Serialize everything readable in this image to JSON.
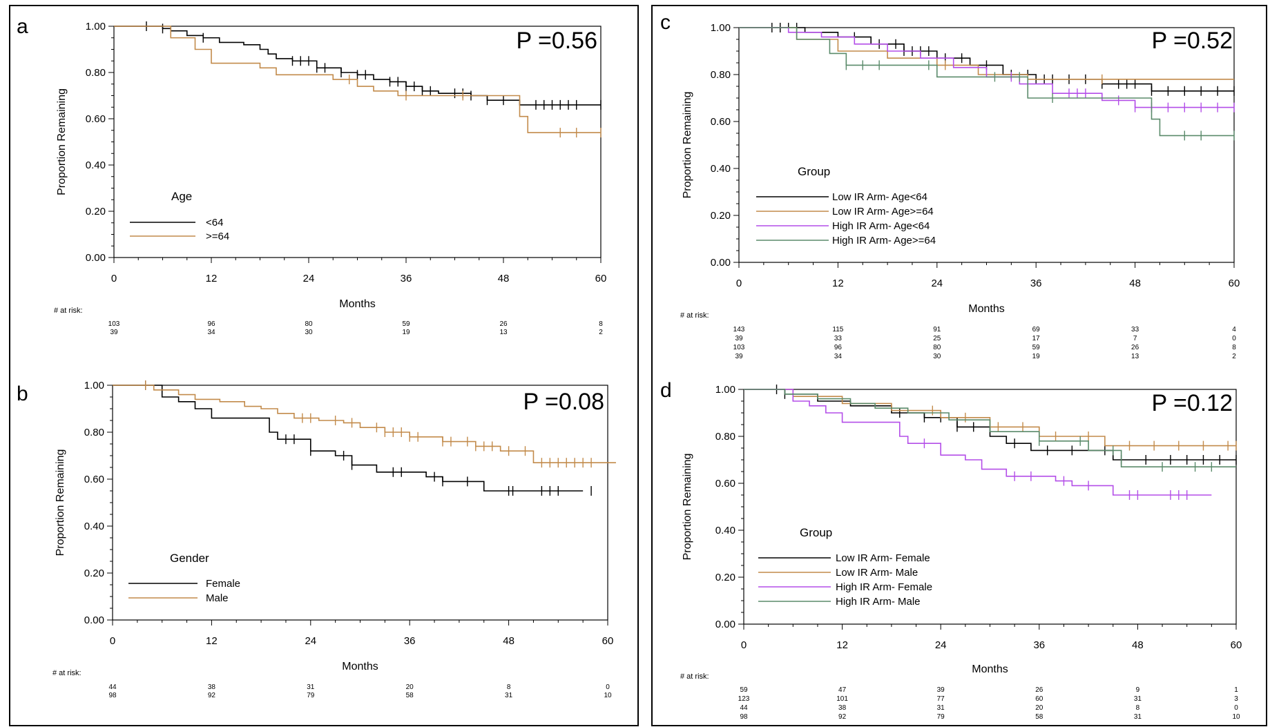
{
  "chart_data": [
    {
      "panel": "a",
      "type": "line",
      "p_value": "P =0.56",
      "xlabel": "Months",
      "ylabel": "Proportion Remaining",
      "xlim": [
        0,
        60
      ],
      "ylim": [
        0,
        1
      ],
      "xticks": [
        "0",
        "12",
        "24",
        "36",
        "48",
        "60"
      ],
      "yticks": [
        "0.00",
        "0.20",
        "0.40",
        "0.60",
        "0.80",
        "1.00"
      ],
      "legend_title": "Age",
      "risk_label": "# at risk:",
      "series": [
        {
          "name": "<64",
          "color": "#000000",
          "x": [
            0,
            6,
            7,
            9,
            11,
            13,
            16,
            18,
            19,
            20,
            22,
            25,
            28,
            30,
            32,
            34,
            36,
            38,
            40,
            44,
            46,
            50,
            60
          ],
          "y": [
            1.0,
            0.99,
            0.98,
            0.96,
            0.95,
            0.93,
            0.92,
            0.9,
            0.88,
            0.86,
            0.85,
            0.82,
            0.8,
            0.79,
            0.77,
            0.76,
            0.74,
            0.72,
            0.71,
            0.7,
            0.68,
            0.66,
            0.66
          ],
          "censors": [
            4,
            6,
            11,
            22,
            23,
            24,
            25,
            26,
            28,
            30,
            31,
            34,
            35,
            36,
            37,
            38,
            39,
            42,
            43,
            44,
            46,
            48,
            52,
            53,
            54,
            55,
            56,
            57,
            60
          ],
          "at_risk": [
            "103",
            "96",
            "80",
            "59",
            "26",
            "8"
          ]
        },
        {
          "name": ">=64",
          "color": "#c28a4a",
          "x": [
            0,
            7,
            10,
            12,
            14,
            18,
            20,
            23,
            27,
            30,
            32,
            35,
            50,
            51,
            60
          ],
          "y": [
            1.0,
            0.95,
            0.9,
            0.84,
            0.84,
            0.82,
            0.79,
            0.79,
            0.77,
            0.74,
            0.72,
            0.7,
            0.61,
            0.54,
            0.54
          ],
          "censors": [
            29,
            36,
            43,
            55,
            57,
            60
          ],
          "at_risk": [
            "39",
            "34",
            "30",
            "19",
            "13",
            "2"
          ]
        }
      ],
      "risk_times": [
        0,
        12,
        24,
        36,
        48,
        60
      ]
    },
    {
      "panel": "b",
      "type": "line",
      "p_value": "P =0.08",
      "xlabel": "Months",
      "ylabel": "Proportion Remaining",
      "xlim": [
        0,
        60
      ],
      "ylim": [
        0,
        1
      ],
      "xticks": [
        "0",
        "12",
        "24",
        "36",
        "48",
        "60"
      ],
      "yticks": [
        "0.00",
        "0.20",
        "0.40",
        "0.60",
        "0.80",
        "1.00"
      ],
      "legend_title": "Gender",
      "risk_label": "# at risk:",
      "series": [
        {
          "name": "Female",
          "color": "#000000",
          "x": [
            0,
            6,
            8,
            10,
            12,
            19,
            20,
            24,
            27,
            29,
            32,
            38,
            40,
            45,
            57
          ],
          "y": [
            1.0,
            0.95,
            0.93,
            0.9,
            0.86,
            0.8,
            0.77,
            0.72,
            0.7,
            0.66,
            0.63,
            0.61,
            0.59,
            0.55,
            0.55
          ],
          "censors": [
            4,
            21,
            22,
            24,
            28,
            29,
            34,
            35,
            39,
            40,
            43,
            48,
            48.5,
            52,
            53,
            54,
            58
          ],
          "at_risk": [
            "44",
            "38",
            "31",
            "20",
            "8",
            "0"
          ]
        },
        {
          "name": "Male",
          "color": "#c28a4a",
          "x": [
            0,
            5,
            8,
            10,
            13,
            16,
            18,
            20,
            22,
            25,
            28,
            30,
            33,
            36,
            40,
            44,
            47,
            51,
            61
          ],
          "y": [
            1.0,
            0.98,
            0.96,
            0.94,
            0.93,
            0.91,
            0.9,
            0.88,
            0.86,
            0.85,
            0.84,
            0.82,
            0.8,
            0.78,
            0.76,
            0.74,
            0.72,
            0.67,
            0.67
          ],
          "censors": [
            4,
            23,
            24,
            27,
            29,
            32,
            33,
            34,
            35,
            36,
            37,
            40,
            41,
            43,
            44,
            45,
            46,
            48,
            50,
            52,
            53,
            54,
            55,
            56,
            57,
            58
          ],
          "at_risk": [
            "98",
            "92",
            "79",
            "58",
            "31",
            "10"
          ]
        }
      ],
      "risk_times": [
        0,
        12,
        24,
        36,
        48,
        60
      ]
    },
    {
      "panel": "c",
      "type": "line",
      "p_value": "P =0.52",
      "xlabel": "Months",
      "ylabel": "Proportion Remaining",
      "xlim": [
        0,
        60
      ],
      "ylim": [
        0,
        1
      ],
      "xticks": [
        "0",
        "12",
        "24",
        "36",
        "48",
        "60"
      ],
      "yticks": [
        "0.00",
        "0.20",
        "0.40",
        "0.60",
        "0.80",
        "1.00"
      ],
      "legend_title": "Group",
      "risk_label": "# at risk:",
      "series": [
        {
          "name": "Low IR Arm- Age<64",
          "color": "#000000",
          "x": [
            0,
            8,
            12,
            16,
            20,
            24,
            28,
            32,
            36,
            44,
            50,
            60
          ],
          "y": [
            1.0,
            0.98,
            0.96,
            0.93,
            0.9,
            0.87,
            0.84,
            0.8,
            0.78,
            0.76,
            0.73,
            0.73
          ],
          "censors": [
            4,
            5,
            6,
            7,
            14,
            17,
            19,
            20,
            21,
            22,
            23,
            25,
            27,
            30,
            33,
            35,
            36,
            37,
            38,
            40,
            42,
            44,
            46,
            47,
            48,
            50,
            52,
            54,
            56,
            58,
            60
          ],
          "at_risk": [
            "143",
            "115",
            "91",
            "69",
            "33",
            "4"
          ]
        },
        {
          "name": "Low IR Arm- Age>=64",
          "color": "#c28a4a",
          "x": [
            0,
            7,
            12,
            18,
            24,
            29,
            35,
            60
          ],
          "y": [
            1.0,
            0.95,
            0.9,
            0.87,
            0.84,
            0.8,
            0.78,
            0.78
          ],
          "censors": [
            25,
            44
          ],
          "at_risk": [
            "39",
            "33",
            "25",
            "17",
            "7",
            "0"
          ]
        },
        {
          "name": "High IR Arm- Age<64",
          "color": "#b34de8",
          "x": [
            0,
            6,
            10,
            14,
            18,
            22,
            26,
            30,
            34,
            38,
            44,
            48,
            60
          ],
          "y": [
            1.0,
            0.98,
            0.96,
            0.93,
            0.9,
            0.87,
            0.83,
            0.79,
            0.76,
            0.72,
            0.69,
            0.66,
            0.66
          ],
          "censors": [
            33,
            40,
            41,
            42,
            46,
            48,
            50,
            52,
            54,
            56,
            58,
            60
          ],
          "at_risk": [
            "103",
            "96",
            "80",
            "59",
            "26",
            "8"
          ]
        },
        {
          "name": "High IR Arm- Age>=64",
          "color": "#5a8a6a",
          "x": [
            0,
            7,
            11,
            13,
            18,
            24,
            29,
            35,
            50,
            51,
            60
          ],
          "y": [
            1.0,
            0.95,
            0.89,
            0.84,
            0.84,
            0.79,
            0.79,
            0.7,
            0.61,
            0.54,
            0.54
          ],
          "censors": [
            13,
            15,
            17,
            23,
            31,
            34,
            38,
            54,
            56,
            60
          ],
          "at_risk": [
            "39",
            "34",
            "30",
            "19",
            "13",
            "2"
          ]
        }
      ],
      "risk_times": [
        0,
        12,
        24,
        36,
        48,
        60
      ]
    },
    {
      "panel": "d",
      "type": "line",
      "p_value": "P =0.12",
      "xlabel": "Months",
      "ylabel": "Proportion Remaining",
      "xlim": [
        0,
        60
      ],
      "ylim": [
        0,
        1
      ],
      "xticks": [
        "0",
        "12",
        "24",
        "36",
        "48",
        "60"
      ],
      "yticks": [
        "0.00",
        "0.20",
        "0.40",
        "0.60",
        "0.80",
        "1.00"
      ],
      "legend_title": "Group",
      "risk_label": "# at risk:",
      "series": [
        {
          "name": "Low IR Arm- Female",
          "color": "#000000",
          "x": [
            0,
            5,
            9,
            13,
            18,
            22,
            26,
            30,
            32,
            35,
            45,
            60
          ],
          "y": [
            1.0,
            0.98,
            0.95,
            0.93,
            0.9,
            0.88,
            0.84,
            0.8,
            0.77,
            0.74,
            0.7,
            0.7
          ],
          "censors": [
            4,
            5,
            19,
            22,
            24,
            26,
            28,
            33,
            37,
            40,
            44,
            46,
            49,
            52,
            54,
            56,
            58,
            60
          ],
          "at_risk": [
            "59",
            "47",
            "39",
            "26",
            "9",
            "1"
          ]
        },
        {
          "name": "Low IR Arm- Male",
          "color": "#c28a4a",
          "x": [
            0,
            6,
            12,
            18,
            24,
            30,
            36,
            44,
            60
          ],
          "y": [
            1.0,
            0.97,
            0.94,
            0.91,
            0.88,
            0.84,
            0.8,
            0.76,
            0.76
          ],
          "censors": [
            23,
            27,
            31,
            34,
            38,
            42,
            47,
            50,
            53,
            56,
            59,
            60
          ],
          "at_risk": [
            "123",
            "101",
            "77",
            "60",
            "31",
            "3"
          ]
        },
        {
          "name": "High IR Arm- Female",
          "color": "#b34de8",
          "x": [
            0,
            6,
            8,
            10,
            12,
            19,
            20,
            24,
            27,
            29,
            32,
            38,
            40,
            45,
            57
          ],
          "y": [
            1.0,
            0.95,
            0.93,
            0.9,
            0.86,
            0.8,
            0.77,
            0.72,
            0.7,
            0.66,
            0.63,
            0.61,
            0.59,
            0.55,
            0.55
          ],
          "censors": [
            22,
            33,
            35,
            39,
            42,
            47,
            48,
            52,
            53,
            54
          ],
          "at_risk": [
            "44",
            "38",
            "31",
            "20",
            "8",
            "0"
          ]
        },
        {
          "name": "High IR Arm- Male",
          "color": "#5a8a6a",
          "x": [
            0,
            5,
            9,
            13,
            16,
            20,
            25,
            30,
            36,
            42,
            46,
            60
          ],
          "y": [
            1.0,
            0.98,
            0.96,
            0.94,
            0.92,
            0.9,
            0.87,
            0.82,
            0.78,
            0.74,
            0.67,
            0.67
          ],
          "censors": [
            36,
            41,
            45,
            51,
            55,
            57
          ],
          "at_risk": [
            "98",
            "92",
            "79",
            "58",
            "31",
            "10"
          ]
        }
      ],
      "risk_times": [
        0,
        12,
        24,
        36,
        48,
        60
      ]
    }
  ],
  "panels": {
    "a": {
      "letter": "a"
    },
    "b": {
      "letter": "b"
    },
    "c": {
      "letter": "c"
    },
    "d": {
      "letter": "d"
    }
  }
}
